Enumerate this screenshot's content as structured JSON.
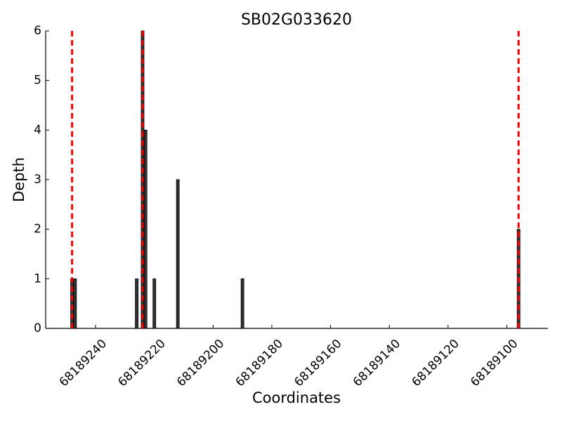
{
  "chart_data": {
    "type": "bar",
    "title": "SB02G033620",
    "x_label": "Coordinates",
    "y_label": "Depth",
    "x": [
      68189248,
      68189247,
      68189226,
      68189224,
      68189223,
      68189220,
      68189212,
      68189190,
      68189096
    ],
    "values": [
      1,
      1,
      1,
      6,
      4,
      1,
      3,
      1,
      2
    ],
    "color": "#333333",
    "xlim": [
      68189257,
      68189086
    ],
    "xticks": [
      68189240,
      68189220,
      68189200,
      68189180,
      68189160,
      68189140,
      68189120,
      68189100
    ],
    "ylim": [
      0,
      6
    ],
    "yticks": [
      0,
      1,
      2,
      3,
      4,
      5,
      6
    ],
    "vlines": [
      68189248,
      68189224,
      68189096
    ],
    "vline_color": "#ff0000"
  }
}
